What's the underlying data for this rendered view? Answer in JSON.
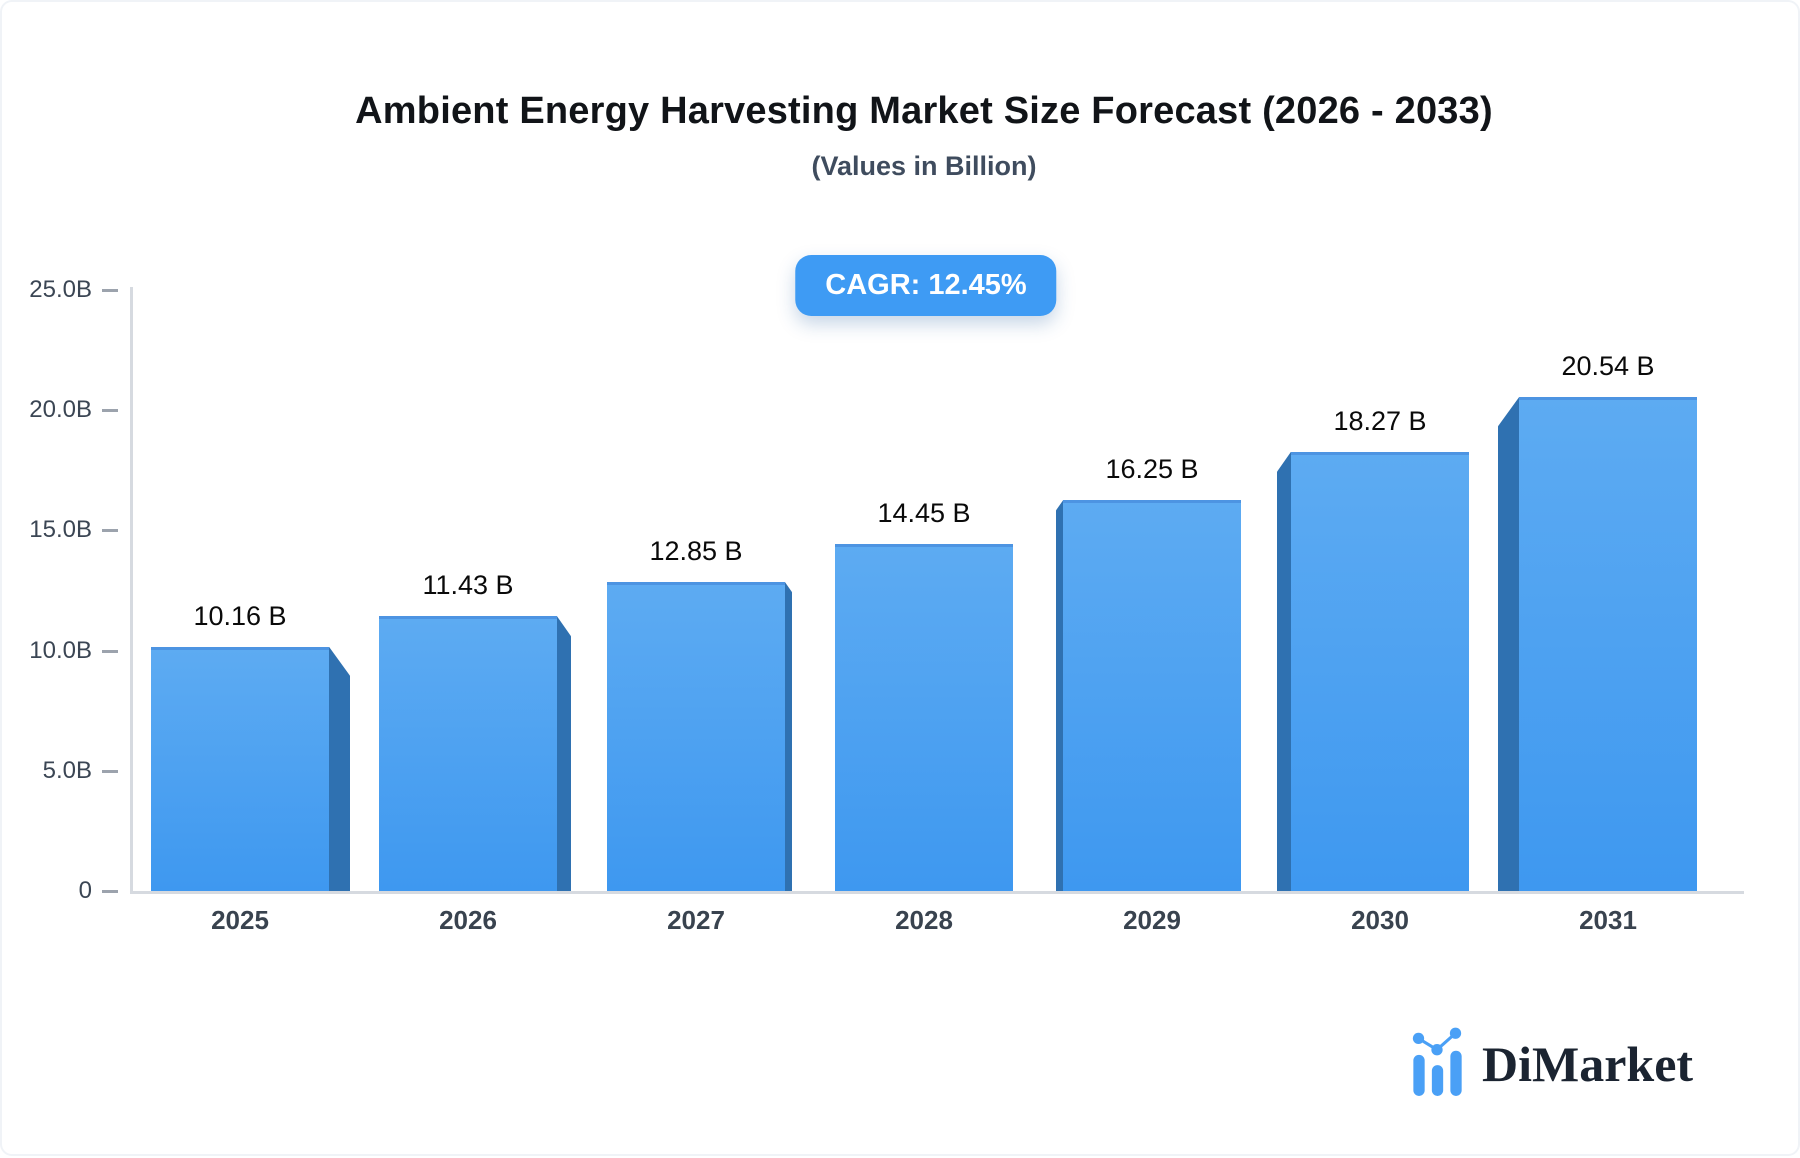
{
  "header": {
    "title": "Ambient Energy Harvesting Market Size Forecast (2026 - 2033)",
    "subtitle": "(Values in Billion)"
  },
  "badge": {
    "label": "CAGR: 12.45%",
    "bg_color": "#3e9bf4",
    "text_color": "#ffffff"
  },
  "chart_data": {
    "type": "bar",
    "title": "Ambient Energy Harvesting Market Size Forecast (2026 - 2033)",
    "subtitle": "(Values in Billion)",
    "categories": [
      "2025",
      "2026",
      "2027",
      "2028",
      "2029",
      "2030",
      "2031"
    ],
    "values": [
      10.16,
      11.43,
      12.85,
      14.45,
      16.25,
      18.27,
      20.54
    ],
    "value_labels": [
      "10.16 B",
      "11.43 B",
      "12.85 B",
      "14.45 B",
      "16.25 B",
      "18.27 B",
      "20.54 B"
    ],
    "cagr_label": "CAGR: 12.45%",
    "xlabel": "",
    "ylabel": "",
    "ylim": [
      0,
      25
    ],
    "yticks": [
      {
        "label": "0",
        "value": 0
      },
      {
        "label": "5.0B",
        "value": 5
      },
      {
        "label": "10.0B",
        "value": 10
      },
      {
        "label": "15.0B",
        "value": 15
      },
      {
        "label": "20.0B",
        "value": 20
      },
      {
        "label": "25.0B",
        "value": 25
      }
    ],
    "grid": false,
    "legend": "none",
    "bar_color_top": "#5dabf2",
    "bar_color_bottom": "#3e98f0",
    "bar_side_color": "#2f71b1",
    "axis_color": "#d6dae0",
    "style": "pseudo-3d columns, side extrusion facing away from center"
  },
  "footer": {
    "brand": "DiMarket",
    "logo_icon": "bar-chart-dots-icon",
    "logo_color": "#4aa0f6",
    "text_color": "#1b2431"
  }
}
